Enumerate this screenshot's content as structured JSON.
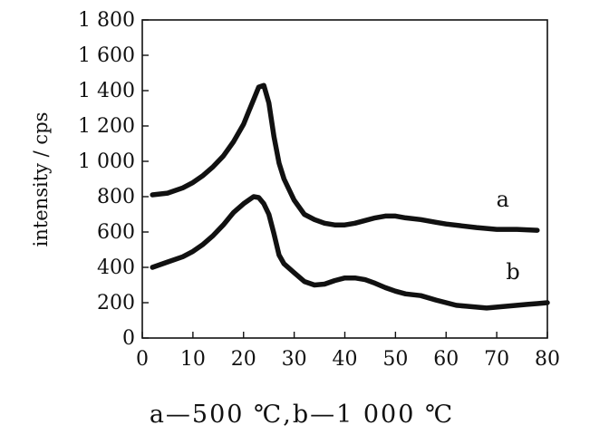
{
  "chart_data": {
    "type": "line",
    "ylabel": "intensity / cps",
    "xlim": [
      0,
      80
    ],
    "ylim": [
      0,
      1800
    ],
    "xticks": [
      0,
      10,
      20,
      30,
      40,
      50,
      60,
      70,
      80
    ],
    "xtick_labels": [
      "0",
      "10",
      "20",
      "30",
      "40",
      "50",
      "60",
      "70",
      "80"
    ],
    "yticks": [
      0,
      200,
      400,
      600,
      800,
      1000,
      1200,
      1400,
      1600,
      1800
    ],
    "ytick_labels": [
      "0",
      "200",
      "400",
      "600",
      "800",
      "1 000",
      "1 200",
      "1 400",
      "1 600",
      "1 800"
    ],
    "grid": false,
    "caption": "a—500 ℃,b—1 000 ℃",
    "series": [
      {
        "name": "a",
        "x": [
          2,
          5,
          8,
          10,
          12,
          14,
          16,
          18,
          20,
          21,
          22,
          23,
          24,
          25,
          26,
          27,
          28,
          30,
          32,
          34,
          36,
          38,
          40,
          42,
          44,
          46,
          48,
          50,
          52,
          55,
          58,
          60,
          63,
          66,
          70,
          74,
          78
        ],
        "y": [
          810,
          820,
          850,
          880,
          920,
          970,
          1030,
          1110,
          1210,
          1280,
          1350,
          1420,
          1430,
          1330,
          1140,
          990,
          900,
          780,
          700,
          670,
          650,
          640,
          640,
          650,
          665,
          680,
          690,
          690,
          680,
          670,
          655,
          645,
          635,
          625,
          615,
          615,
          610
        ]
      },
      {
        "name": "b",
        "x": [
          2,
          5,
          8,
          10,
          12,
          14,
          16,
          18,
          20,
          21,
          22,
          23,
          24,
          25,
          26,
          27,
          28,
          30,
          32,
          34,
          36,
          38,
          40,
          42,
          44,
          46,
          48,
          50,
          52,
          55,
          58,
          60,
          62,
          64,
          66,
          68,
          70,
          72,
          74,
          76,
          78,
          80
        ],
        "y": [
          400,
          430,
          460,
          490,
          530,
          580,
          640,
          710,
          760,
          780,
          800,
          795,
          760,
          700,
          590,
          470,
          420,
          370,
          320,
          300,
          305,
          325,
          340,
          340,
          330,
          310,
          285,
          265,
          250,
          240,
          215,
          200,
          185,
          180,
          175,
          170,
          175,
          180,
          185,
          190,
          195,
          200
        ]
      }
    ]
  }
}
